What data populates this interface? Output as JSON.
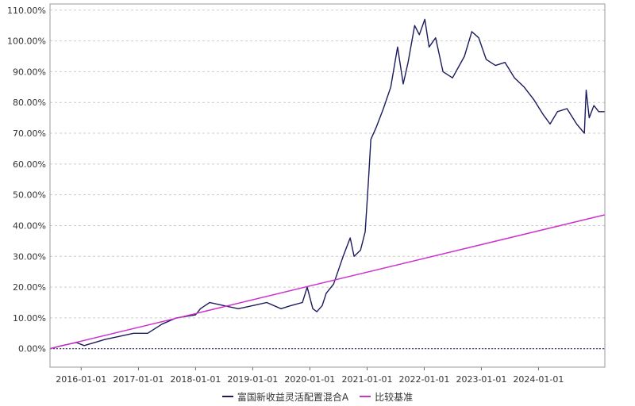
{
  "chart_data": {
    "type": "line",
    "title": "",
    "xlabel": "",
    "ylabel": "",
    "x_range": [
      "2015-06-16",
      "2025-02-28"
    ],
    "ylim": [
      -6,
      112
    ],
    "y_ticks": [
      0,
      10,
      20,
      30,
      40,
      50,
      60,
      70,
      80,
      90,
      100,
      110
    ],
    "y_tick_labels": [
      "0.00%",
      "10.00%",
      "20.00%",
      "30.00%",
      "40.00%",
      "50.00%",
      "60.00%",
      "70.00%",
      "80.00%",
      "90.00%",
      "100.00%",
      "110.00%"
    ],
    "x_tick_labels": [
      "2016-01-01",
      "2017-01-01",
      "2018-01-01",
      "2019-01-01",
      "2020-01-01",
      "2021-01-01",
      "2022-01-01",
      "2023-01-01",
      "2024-01-01"
    ],
    "grid": true,
    "legend_position": "bottom-center",
    "series": [
      {
        "name": "富国新收益灵活配置混合A",
        "color": "#1a1a5e",
        "points": [
          [
            "2015-06-16",
            0
          ],
          [
            "2015-09-01",
            1
          ],
          [
            "2015-12-01",
            2
          ],
          [
            "2016-01-20",
            1
          ],
          [
            "2016-06-01",
            3
          ],
          [
            "2016-09-01",
            4
          ],
          [
            "2016-12-01",
            5
          ],
          [
            "2017-03-01",
            5
          ],
          [
            "2017-06-01",
            8
          ],
          [
            "2017-09-01",
            10
          ],
          [
            "2018-01-01",
            11
          ],
          [
            "2018-02-01",
            13
          ],
          [
            "2018-04-01",
            15
          ],
          [
            "2018-07-01",
            14
          ],
          [
            "2018-10-01",
            13
          ],
          [
            "2019-01-01",
            14
          ],
          [
            "2019-04-01",
            15
          ],
          [
            "2019-07-01",
            13
          ],
          [
            "2019-09-01",
            14
          ],
          [
            "2019-11-15",
            15
          ],
          [
            "2019-12-15",
            20
          ],
          [
            "2020-01-20",
            13
          ],
          [
            "2020-02-15",
            12
          ],
          [
            "2020-03-20",
            14
          ],
          [
            "2020-04-15",
            18
          ],
          [
            "2020-06-01",
            21
          ],
          [
            "2020-08-01",
            30
          ],
          [
            "2020-09-15",
            36
          ],
          [
            "2020-10-10",
            30
          ],
          [
            "2020-11-20",
            32
          ],
          [
            "2020-12-20",
            38
          ],
          [
            "2021-01-10",
            55
          ],
          [
            "2021-01-25",
            68
          ],
          [
            "2021-03-01",
            72
          ],
          [
            "2021-04-15",
            78
          ],
          [
            "2021-06-01",
            85
          ],
          [
            "2021-07-15",
            98
          ],
          [
            "2021-08-20",
            86
          ],
          [
            "2021-09-20",
            93
          ],
          [
            "2021-11-01",
            105
          ],
          [
            "2021-12-01",
            102
          ],
          [
            "2022-01-05",
            107
          ],
          [
            "2022-02-01",
            98
          ],
          [
            "2022-03-15",
            101
          ],
          [
            "2022-05-01",
            90
          ],
          [
            "2022-07-01",
            88
          ],
          [
            "2022-09-15",
            95
          ],
          [
            "2022-11-01",
            103
          ],
          [
            "2022-12-15",
            101
          ],
          [
            "2023-02-01",
            94
          ],
          [
            "2023-04-01",
            92
          ],
          [
            "2023-06-01",
            93
          ],
          [
            "2023-08-01",
            88
          ],
          [
            "2023-10-01",
            85
          ],
          [
            "2023-12-01",
            81
          ],
          [
            "2024-02-01",
            76
          ],
          [
            "2024-03-15",
            73
          ],
          [
            "2024-05-01",
            77
          ],
          [
            "2024-07-01",
            78
          ],
          [
            "2024-09-01",
            73
          ],
          [
            "2024-10-20",
            70
          ],
          [
            "2024-11-01",
            84
          ],
          [
            "2024-11-20",
            75
          ],
          [
            "2024-12-20",
            79
          ],
          [
            "2025-01-20",
            77
          ],
          [
            "2025-02-28",
            77
          ]
        ]
      },
      {
        "name": "比较基准",
        "color": "#cc33cc",
        "points": [
          [
            "2015-06-16",
            0
          ],
          [
            "2025-02-28",
            43.5
          ]
        ]
      }
    ]
  }
}
